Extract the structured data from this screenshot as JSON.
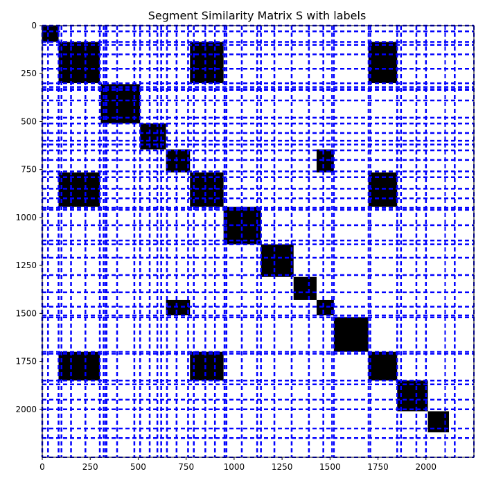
{
  "chart_data": {
    "type": "heatmap",
    "title": "Segment Similarity Matrix S with labels",
    "xlabel": "",
    "ylabel": "",
    "xlim": [
      0,
      2250
    ],
    "ylim": [
      2250,
      0
    ],
    "x_ticks": [
      0,
      250,
      500,
      750,
      1000,
      1250,
      1500,
      1750,
      2000
    ],
    "y_ticks": [
      0,
      250,
      500,
      750,
      1000,
      1250,
      1500,
      1750,
      2000
    ],
    "cell_color": "#000000",
    "boundary_color": "#0000ff",
    "segment_boundaries": [
      0,
      85,
      100,
      300,
      330,
      510,
      650,
      760,
      790,
      950,
      960,
      1140,
      1210,
      1300,
      1390,
      1465,
      1510,
      1700,
      1710,
      1850,
      1870,
      2100,
      2250
    ],
    "label_boundaries": [
      0,
      30,
      85,
      100,
      150,
      225,
      300,
      320,
      335,
      390,
      480,
      510,
      560,
      600,
      620,
      650,
      700,
      760,
      790,
      850,
      900,
      950,
      960,
      1040,
      1120,
      1140,
      1210,
      1300,
      1390,
      1465,
      1520,
      1710,
      1850,
      1870,
      1950,
      2000,
      2150
    ],
    "blocks": [
      {
        "x0": 0,
        "x1": 85,
        "y0": 0,
        "y1": 85
      },
      {
        "x0": 85,
        "x1": 300,
        "y0": 85,
        "y1": 300
      },
      {
        "x0": 770,
        "x1": 945,
        "y0": 85,
        "y1": 300
      },
      {
        "x0": 1700,
        "x1": 1850,
        "y0": 85,
        "y1": 300
      },
      {
        "x0": 305,
        "x1": 510,
        "y0": 305,
        "y1": 510
      },
      {
        "x0": 510,
        "x1": 645,
        "y0": 510,
        "y1": 645
      },
      {
        "x0": 645,
        "x1": 770,
        "y0": 645,
        "y1": 765
      },
      {
        "x0": 1430,
        "x1": 1520,
        "y0": 645,
        "y1": 765
      },
      {
        "x0": 85,
        "x1": 300,
        "y0": 765,
        "y1": 945
      },
      {
        "x0": 770,
        "x1": 945,
        "y0": 765,
        "y1": 945
      },
      {
        "x0": 1700,
        "x1": 1850,
        "y0": 765,
        "y1": 945
      },
      {
        "x0": 945,
        "x1": 1140,
        "y0": 945,
        "y1": 1140
      },
      {
        "x0": 1140,
        "x1": 1310,
        "y0": 1140,
        "y1": 1310
      },
      {
        "x0": 1310,
        "x1": 1430,
        "y0": 1310,
        "y1": 1430
      },
      {
        "x0": 645,
        "x1": 770,
        "y0": 1430,
        "y1": 1510
      },
      {
        "x0": 1430,
        "x1": 1520,
        "y0": 1430,
        "y1": 1510
      },
      {
        "x0": 1520,
        "x1": 1700,
        "y0": 1520,
        "y1": 1700
      },
      {
        "x0": 85,
        "x1": 300,
        "y0": 1700,
        "y1": 1850
      },
      {
        "x0": 770,
        "x1": 945,
        "y0": 1700,
        "y1": 1850
      },
      {
        "x0": 1700,
        "x1": 1850,
        "y0": 1700,
        "y1": 1850
      },
      {
        "x0": 1850,
        "x1": 2010,
        "y0": 1850,
        "y1": 2010
      },
      {
        "x0": 2010,
        "x1": 2120,
        "y0": 2010,
        "y1": 2120
      }
    ]
  }
}
